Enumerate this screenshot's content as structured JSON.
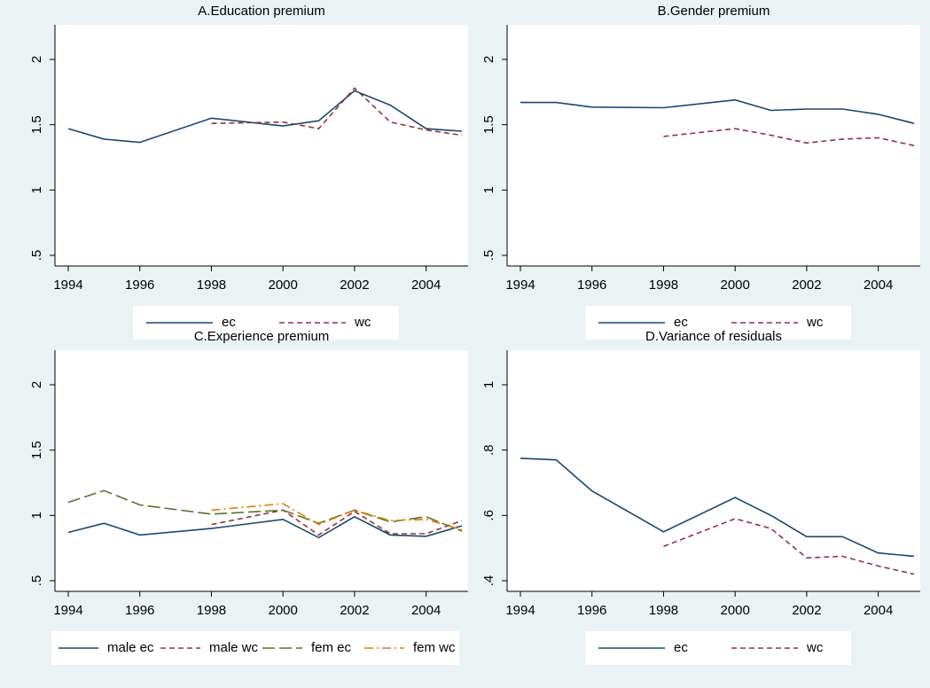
{
  "chart_data": [
    {
      "type": "line",
      "title": "A.Education premium",
      "x": [
        1994,
        1995,
        1996,
        1998,
        2000,
        2001,
        2002,
        2003,
        2004,
        2005
      ],
      "series": [
        {
          "name": "ec",
          "color": "#1a476f",
          "values": [
            1.47,
            1.39,
            1.365,
            1.55,
            1.49,
            1.53,
            1.76,
            1.65,
            1.47,
            1.45
          ]
        },
        {
          "name": "wc",
          "color": "#90353b",
          "values": [
            null,
            null,
            null,
            1.51,
            1.52,
            1.47,
            1.78,
            1.52,
            1.46,
            1.42
          ]
        }
      ],
      "xlim": [
        1994,
        2005
      ],
      "xticks": [
        1994,
        1996,
        1998,
        2000,
        2002,
        2004
      ],
      "ylim": [
        0.5,
        2
      ],
      "yticks": [
        {
          "value": 0.5,
          "label": ".5"
        },
        1,
        1.5,
        2
      ]
    },
    {
      "type": "line",
      "title": "B.Gender premium",
      "x": [
        1994,
        1995,
        1996,
        1998,
        2000,
        2001,
        2002,
        2003,
        2004,
        2005
      ],
      "series": [
        {
          "name": "ec",
          "color": "#1a476f",
          "values": [
            1.67,
            1.67,
            1.635,
            1.63,
            1.69,
            1.61,
            1.62,
            1.62,
            1.58,
            1.51
          ]
        },
        {
          "name": "wc",
          "color": "#90353b",
          "values": [
            null,
            null,
            null,
            1.41,
            1.47,
            1.42,
            1.36,
            1.39,
            1.4,
            1.34
          ]
        }
      ],
      "xlim": [
        1994,
        2005
      ],
      "xticks": [
        1994,
        1996,
        1998,
        2000,
        2002,
        2004
      ],
      "ylim": [
        0.5,
        2
      ],
      "yticks": [
        {
          "value": 0.5,
          "label": ".5"
        },
        1,
        1.5,
        2
      ]
    },
    {
      "type": "line",
      "title": "C.Experience premium",
      "x": [
        1994,
        1995,
        1996,
        1998,
        2000,
        2001,
        2002,
        2003,
        2004,
        2005
      ],
      "series": [
        {
          "name": "male ec",
          "color": "#1a476f",
          "values": [
            0.87,
            0.94,
            0.85,
            0.9,
            0.97,
            0.83,
            0.99,
            0.85,
            0.84,
            0.92
          ]
        },
        {
          "name": "male wc",
          "color": "#90353b",
          "values": [
            null,
            null,
            null,
            0.93,
            1.04,
            0.85,
            1.03,
            0.86,
            0.86,
            0.96
          ]
        },
        {
          "name": "fem ec",
          "color": "#55752f",
          "values": [
            1.1,
            1.19,
            1.08,
            1.01,
            1.04,
            0.94,
            1.04,
            0.95,
            0.99,
            0.88
          ]
        },
        {
          "name": "fem wc",
          "color": "#e37e00",
          "values": [
            null,
            null,
            null,
            1.04,
            1.09,
            0.93,
            1.04,
            0.96,
            0.97,
            0.89
          ]
        }
      ],
      "xlim": [
        1994,
        2005
      ],
      "xticks": [
        1994,
        1996,
        1998,
        2000,
        2002,
        2004
      ],
      "ylim": [
        0.5,
        2
      ],
      "yticks": [
        {
          "value": 0.5,
          "label": ".5"
        },
        1,
        1.5,
        2
      ]
    },
    {
      "type": "line",
      "title": "D.Variance of residuals",
      "x": [
        1994,
        1995,
        1996,
        1998,
        2000,
        2001,
        2002,
        2003,
        2004,
        2005
      ],
      "series": [
        {
          "name": "ec",
          "color": "#1a476f",
          "values": [
            0.775,
            0.77,
            0.675,
            0.55,
            0.655,
            0.6,
            0.535,
            0.535,
            0.485,
            0.475
          ]
        },
        {
          "name": "wc",
          "color": "#90353b",
          "values": [
            null,
            null,
            null,
            0.505,
            0.59,
            0.56,
            0.47,
            0.475,
            0.445,
            0.42
          ]
        }
      ],
      "xlim": [
        1994,
        2005
      ],
      "xticks": [
        1994,
        1996,
        1998,
        2000,
        2002,
        2004
      ],
      "ylim": [
        0.4,
        1
      ],
      "yticks": [
        {
          "value": 0.4,
          "label": ".4"
        },
        {
          "value": 0.6,
          "label": ".6"
        },
        {
          "value": 0.8,
          "label": ".8"
        },
        1
      ]
    }
  ]
}
